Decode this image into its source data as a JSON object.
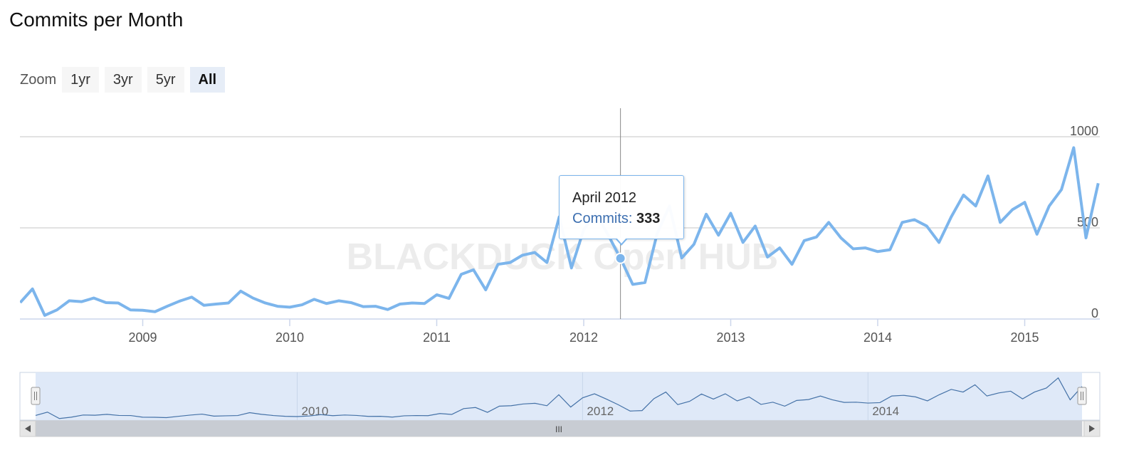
{
  "header": {
    "title": "Commits per Month"
  },
  "zoom": {
    "label": "Zoom",
    "buttons": [
      "1yr",
      "3yr",
      "5yr",
      "All"
    ],
    "active": "All"
  },
  "watermark": "BLACKDUCK Open HUB",
  "tooltip": {
    "date": "April 2012",
    "series": "Commits",
    "value": "333"
  },
  "navigator": {
    "labels": [
      "2010",
      "2012",
      "2014"
    ],
    "scroll_grip": "III"
  },
  "colors": {
    "line": "#7cb5ec",
    "navigator_fill": "#dbe7f7",
    "scrollbar": "#c8ccd3"
  },
  "chart_data": {
    "type": "line",
    "title": "Commits per Month",
    "xlabel": "",
    "ylabel": "",
    "ylim": [
      0,
      1000
    ],
    "yticks": [
      0,
      500,
      1000
    ],
    "xticks": [
      "2009",
      "2010",
      "2011",
      "2012",
      "2013",
      "2014",
      "2015"
    ],
    "grid": true,
    "start": "2008-03",
    "series": [
      {
        "name": "Commits",
        "values": [
          90,
          165,
          20,
          50,
          100,
          95,
          115,
          90,
          88,
          50,
          48,
          40,
          70,
          98,
          120,
          75,
          82,
          88,
          153,
          115,
          88,
          70,
          65,
          78,
          108,
          85,
          100,
          90,
          68,
          70,
          52,
          82,
          88,
          85,
          133,
          113,
          245,
          270,
          160,
          300,
          310,
          350,
          365,
          310,
          560,
          280,
          490,
          580,
          460,
          333,
          190,
          200,
          470,
          620,
          335,
          410,
          575,
          460,
          580,
          420,
          510,
          340,
          390,
          300,
          430,
          450,
          530,
          445,
          385,
          390,
          370,
          380,
          530,
          545,
          510,
          420,
          560,
          680,
          620,
          785,
          530,
          600,
          640,
          465,
          620,
          710,
          940,
          445,
          745
        ]
      }
    ],
    "highlight": {
      "x": "2012-04",
      "y": 333
    }
  }
}
